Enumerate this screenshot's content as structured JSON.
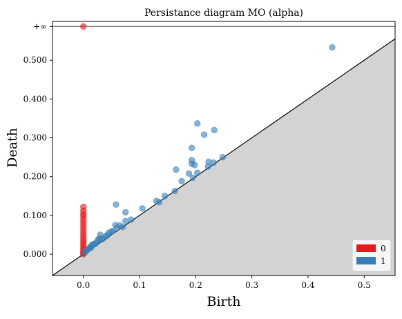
{
  "chart_data": {
    "type": "scatter",
    "title": "Persistance diagram MO (alpha)",
    "xlabel": "Birth",
    "ylabel": "Death",
    "xlim": [
      -0.055,
      0.555
    ],
    "ylim": [
      -0.055,
      0.6
    ],
    "infinity_label": "+∞",
    "infinity_y": 0.587,
    "xticks": [
      0.0,
      0.1,
      0.2,
      0.3,
      0.4,
      0.5
    ],
    "xtick_labels": [
      "0.0",
      "0.1",
      "0.2",
      "0.3",
      "0.4",
      "0.5"
    ],
    "yticks": [
      0.0,
      0.1,
      0.2,
      0.3,
      0.4,
      0.5
    ],
    "ytick_labels": [
      "0.000",
      "0.100",
      "0.200",
      "0.300",
      "0.400",
      "0.500"
    ],
    "diagonal": true,
    "shaded_region": "below-diagonal",
    "shade_color": "#d3d3d3",
    "legend_position": "bottom-right",
    "series": [
      {
        "name": "0",
        "color": "#e41a1c",
        "points": [
          [
            0.0,
            0.587
          ],
          [
            0.0,
            0.122
          ],
          [
            0.0,
            0.112
          ],
          [
            0.0,
            0.104
          ],
          [
            0.0,
            0.098
          ],
          [
            0.0,
            0.09
          ],
          [
            0.0,
            0.082
          ],
          [
            0.0,
            0.074
          ],
          [
            0.0,
            0.066
          ],
          [
            0.0,
            0.058
          ],
          [
            0.0,
            0.05
          ],
          [
            0.0,
            0.043
          ],
          [
            0.0,
            0.036
          ],
          [
            0.0,
            0.03
          ],
          [
            0.0,
            0.024
          ],
          [
            0.0,
            0.018
          ],
          [
            0.0,
            0.012
          ],
          [
            0.0,
            0.007
          ],
          [
            0.0,
            0.003
          ],
          [
            0.0,
            0.0
          ]
        ]
      },
      {
        "name": "1",
        "color": "#377eb8",
        "points": [
          [
            0.443,
            0.533
          ],
          [
            0.203,
            0.337
          ],
          [
            0.233,
            0.32
          ],
          [
            0.215,
            0.308
          ],
          [
            0.193,
            0.274
          ],
          [
            0.248,
            0.25
          ],
          [
            0.193,
            0.242
          ],
          [
            0.223,
            0.238
          ],
          [
            0.232,
            0.236
          ],
          [
            0.193,
            0.233
          ],
          [
            0.198,
            0.23
          ],
          [
            0.165,
            0.218
          ],
          [
            0.222,
            0.226
          ],
          [
            0.203,
            0.21
          ],
          [
            0.188,
            0.208
          ],
          [
            0.195,
            0.197
          ],
          [
            0.175,
            0.188
          ],
          [
            0.163,
            0.163
          ],
          [
            0.145,
            0.15
          ],
          [
            0.13,
            0.137
          ],
          [
            0.135,
            0.134
          ],
          [
            0.105,
            0.118
          ],
          [
            0.058,
            0.128
          ],
          [
            0.075,
            0.108
          ],
          [
            0.085,
            0.089
          ],
          [
            0.075,
            0.085
          ],
          [
            0.065,
            0.074
          ],
          [
            0.057,
            0.075
          ],
          [
            0.06,
            0.068
          ],
          [
            0.05,
            0.058
          ],
          [
            0.045,
            0.055
          ],
          [
            0.03,
            0.05
          ],
          [
            0.04,
            0.046
          ],
          [
            0.035,
            0.04
          ],
          [
            0.028,
            0.04
          ],
          [
            0.025,
            0.036
          ],
          [
            0.022,
            0.028
          ],
          [
            0.018,
            0.026
          ],
          [
            0.015,
            0.024
          ],
          [
            0.012,
            0.018
          ],
          [
            0.01,
            0.015
          ],
          [
            0.008,
            0.012
          ],
          [
            0.005,
            0.008
          ],
          [
            0.003,
            0.005
          ],
          [
            0.07,
            0.07
          ],
          [
            0.052,
            0.06
          ],
          [
            0.042,
            0.048
          ],
          [
            0.032,
            0.038
          ],
          [
            0.02,
            0.026
          ],
          [
            0.014,
            0.017
          ]
        ]
      }
    ]
  }
}
